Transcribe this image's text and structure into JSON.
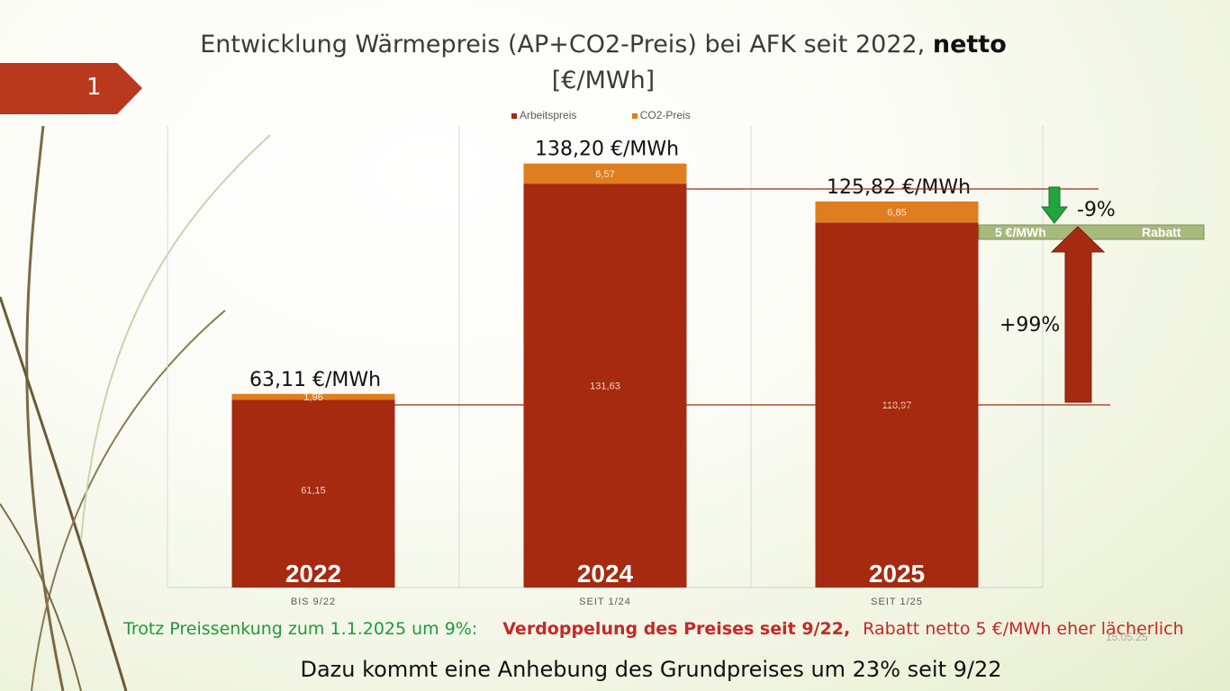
{
  "slide_number": "1",
  "title_main": "Entwicklung Wärmepreis (AP+CO2-Preis) bei AFK seit 2022,",
  "title_bold": "netto",
  "title_unit": "[€/MWh]",
  "footer_green": "Trotz Preissenkung zum 1.1.2025 um 9%:",
  "footer_bold_red": "Verdoppelung des Preises seit 9/22,",
  "footer_red": "Rabatt netto 5 €/MWh eher lächerlich",
  "footer_bottom": "Dazu kommt eine Anhebung des Grundpreises um 23% seit 9/22",
  "date_text": "15.05.25",
  "annotations": {
    "change_down": "-9%",
    "change_up": "+99%",
    "discount_label": "5 €/MWh",
    "discount_word": "Rabatt"
  },
  "colors": {
    "arbeitspreis": "#a52a10",
    "co2": "#df7e1e",
    "accent": "#b8391d",
    "arrow_down": "#22a33c",
    "discount_bar": "#a8b97c"
  },
  "chart_data": {
    "type": "bar",
    "stacked": true,
    "categories": [
      "BIS 9/22",
      "SEIT 1/24",
      "SEIT 1/25"
    ],
    "bar_year_labels": [
      "2022",
      "2024",
      "2025"
    ],
    "series": [
      {
        "name": "Arbeitspreis",
        "values": [
          61.15,
          131.63,
          118.97
        ]
      },
      {
        "name": "CO2-Preis",
        "values": [
          1.96,
          6.57,
          6.85
        ]
      }
    ],
    "value_labels": [
      [
        "61,15",
        "131,63",
        "118,97"
      ],
      [
        "1,96",
        "6,57",
        "6,85"
      ]
    ],
    "total_labels": [
      "63,11 €/MWh",
      "138,20 €/MWh",
      "125,82 €/MWh"
    ],
    "totals": [
      63.11,
      138.2,
      125.82
    ],
    "ylim": [
      0,
      160
    ],
    "legend_position": "top",
    "grid": true
  }
}
